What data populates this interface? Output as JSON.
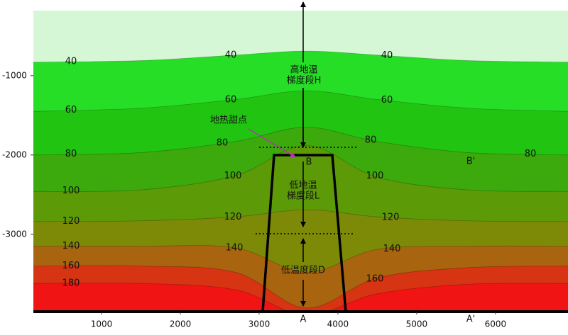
{
  "chart_data": {
    "type": "contour",
    "xlim": [
      135,
      6920
    ],
    "ylim": [
      -3975,
      -180
    ],
    "xticks": [
      1000,
      2000,
      3000,
      4000,
      5000,
      6000
    ],
    "yticks": [
      -1000,
      -2000,
      -3000
    ],
    "top_color": "#d6f7d6",
    "contours": [
      {
        "level": 40,
        "color": "#27de27",
        "x": [
          135,
          1500,
          2700,
          3600,
          4500,
          5650,
          6920
        ],
        "y": [
          -830,
          -810,
          -740,
          -690,
          -740,
          -810,
          -830
        ]
      },
      {
        "level": 60,
        "color": "#22c412",
        "x": [
          135,
          1500,
          2700,
          3600,
          4500,
          5650,
          6920
        ],
        "y": [
          -1450,
          -1410,
          -1300,
          -1190,
          -1300,
          -1410,
          -1450
        ]
      },
      {
        "level": 80,
        "color": "#3ca90c",
        "x": [
          135,
          1500,
          2700,
          3600,
          4500,
          5650,
          6920
        ],
        "y": [
          -2000,
          -1970,
          -1830,
          -1650,
          -1830,
          -1970,
          -2000
        ]
      },
      {
        "level": 100,
        "color": "#5c9a08",
        "x": [
          135,
          1500,
          2700,
          3600,
          4500,
          5650,
          6920
        ],
        "y": [
          -2460,
          -2440,
          -2260,
          -1880,
          -2280,
          -2440,
          -2460
        ]
      },
      {
        "level": 120,
        "color": "#7d8a08",
        "x": [
          135,
          1500,
          2700,
          3600,
          4500,
          5650,
          6920
        ],
        "y": [
          -2840,
          -2830,
          -2780,
          -2690,
          -2780,
          -2830,
          -2840
        ]
      },
      {
        "level": 140,
        "color": "#a8640e",
        "x": [
          135,
          1500,
          2700,
          3600,
          4500,
          5650,
          6920
        ],
        "y": [
          -3150,
          -3150,
          -3170,
          -3480,
          -3190,
          -3150,
          -3150
        ]
      },
      {
        "level": 160,
        "color": "#d63412",
        "x": [
          135,
          1500,
          2700,
          3600,
          4500,
          5650,
          6920
        ],
        "y": [
          -3400,
          -3400,
          -3480,
          -3930,
          -3550,
          -3420,
          -3400
        ]
      },
      {
        "level": 180,
        "color": "#f01414",
        "x": [
          135,
          1500,
          2700,
          3600,
          4500,
          5650,
          6920
        ],
        "y": [
          -3620,
          -3620,
          -3700,
          -4020,
          -3750,
          -3630,
          -3620
        ]
      }
    ],
    "annotations": {
      "high_1": "高地温",
      "high_2": "梯度段H",
      "sweet_spot": "地热甜点",
      "b": "B",
      "b_prime": "B'",
      "low_1": "低地温",
      "low_2": "梯度段L",
      "low_temp": "低温度段D",
      "a": "A",
      "a_prime": "A'"
    }
  }
}
